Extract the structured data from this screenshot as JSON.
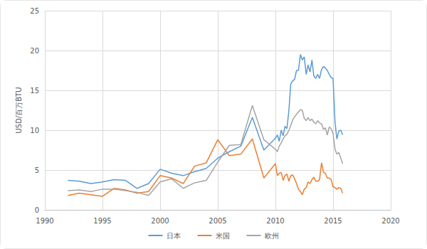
{
  "chart_data": {
    "type": "line",
    "y_label": "USD/百万BTU",
    "x": [
      1992,
      1993,
      1994,
      1995,
      1996,
      1997,
      1998,
      1999,
      2000,
      2001,
      2002,
      2003,
      2004,
      2005,
      2006,
      2007,
      2008,
      2009,
      2010.0,
      2010.17,
      2010.33,
      2010.5,
      2010.67,
      2010.83,
      2011.0,
      2011.17,
      2011.33,
      2011.5,
      2011.67,
      2011.83,
      2012.0,
      2012.17,
      2012.33,
      2012.5,
      2012.67,
      2012.83,
      2013.0,
      2013.17,
      2013.33,
      2013.5,
      2013.67,
      2013.83,
      2014.0,
      2014.17,
      2014.33,
      2014.5,
      2014.67,
      2014.83,
      2015.0,
      2015.17,
      2015.33,
      2015.5,
      2015.67,
      2015.83
    ],
    "series": [
      {
        "name": "日本",
        "color": "#5b9bd5",
        "values": [
          3.7,
          3.6,
          3.3,
          3.5,
          3.8,
          3.7,
          2.7,
          3.3,
          5.1,
          4.6,
          4.3,
          4.8,
          5.2,
          6.5,
          7.3,
          8.0,
          11.6,
          7.5,
          9.0,
          9.4,
          8.6,
          10.0,
          9.3,
          10.5,
          10.2,
          12.5,
          15.8,
          16.2,
          16.4,
          17.5,
          17.5,
          19.5,
          18.8,
          19.2,
          17.0,
          18.2,
          17.3,
          18.8,
          16.8,
          16.5,
          17.0,
          16.5,
          17.6,
          18.0,
          17.8,
          17.5,
          17.0,
          16.6,
          16.5,
          11.0,
          8.9,
          9.9,
          10.0,
          9.4
        ]
      },
      {
        "name": "米国",
        "color": "#ed7d31",
        "values": [
          1.8,
          2.1,
          1.9,
          1.7,
          2.7,
          2.5,
          2.1,
          2.3,
          4.3,
          4.0,
          3.3,
          5.5,
          5.9,
          8.8,
          6.8,
          7.0,
          8.9,
          4.0,
          5.8,
          4.3,
          4.6,
          4.7,
          3.7,
          4.3,
          4.5,
          3.6,
          4.3,
          4.4,
          3.9,
          3.3,
          2.6,
          2.3,
          1.9,
          2.6,
          2.8,
          3.5,
          3.3,
          3.8,
          4.1,
          3.6,
          3.6,
          3.8,
          5.9,
          4.7,
          4.6,
          4.0,
          4.0,
          3.8,
          2.9,
          2.8,
          2.6,
          2.8,
          2.7,
          2.1
        ]
      },
      {
        "name": "欧州",
        "color": "#a5a5a5",
        "values": [
          2.4,
          2.5,
          2.3,
          2.6,
          2.6,
          2.4,
          2.2,
          1.8,
          3.5,
          3.9,
          2.7,
          3.4,
          3.7,
          6.0,
          8.1,
          8.2,
          13.1,
          8.8,
          7.6,
          7.3,
          8.0,
          8.4,
          8.9,
          9.3,
          9.5,
          10.0,
          10.6,
          11.3,
          11.7,
          12.0,
          12.3,
          12.6,
          12.5,
          11.5,
          11.2,
          11.6,
          11.2,
          11.4,
          11.0,
          10.8,
          11.2,
          10.9,
          10.8,
          10.1,
          10.3,
          9.4,
          10.4,
          10.2,
          9.6,
          7.6,
          7.0,
          7.2,
          6.5,
          5.8
        ]
      }
    ],
    "xlim": [
      1990,
      2020
    ],
    "xticks": [
      1990,
      1995,
      2000,
      2005,
      2010,
      2015,
      2020
    ],
    "ylim": [
      0,
      25
    ],
    "yticks": [
      0,
      5,
      10,
      15,
      20,
      25
    ],
    "grid": true,
    "legend": "bottom"
  }
}
